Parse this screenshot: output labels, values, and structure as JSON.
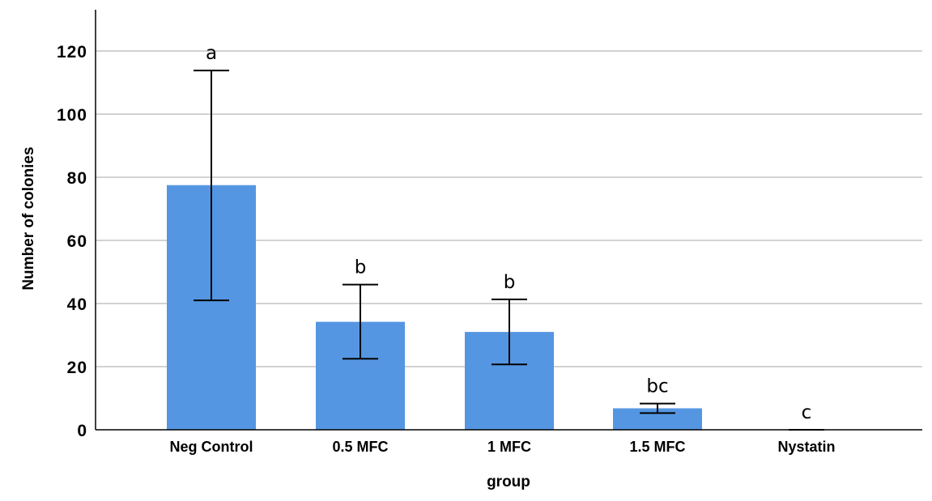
{
  "colors": {
    "bar": "#5596e2",
    "grid": "#b8b8b8",
    "axis": "#000000",
    "error_bar": "#000000"
  },
  "chart_data": {
    "type": "bar",
    "title": "",
    "xlabel": "group",
    "ylabel": "Number of colonies",
    "categories": [
      "Neg Control",
      "0.5 MFC",
      "1 MFC",
      "1.5 MFC",
      "Nystatin"
    ],
    "values": [
      77.5,
      34.2,
      31.0,
      6.8,
      0
    ],
    "error_low": [
      41.0,
      22.5,
      20.7,
      5.3,
      0
    ],
    "error_high": [
      113.8,
      46.0,
      41.3,
      8.3,
      0
    ],
    "significance_labels": [
      "a",
      "b",
      "b",
      "bc",
      "c"
    ],
    "yticks": [
      "0",
      "20",
      "40",
      "60",
      "80",
      "100",
      "120"
    ],
    "ylim": [
      0,
      133
    ],
    "grid": "horizontal",
    "legend": "none"
  }
}
